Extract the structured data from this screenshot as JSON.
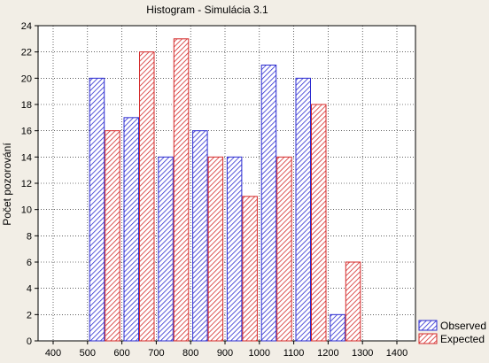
{
  "chart_data": {
    "type": "bar",
    "title": "Histogram - Simulácia 3.1",
    "xlabel": "",
    "ylabel": "Počet pozorování",
    "x_ticks": [
      "400",
      "500",
      "600",
      "700",
      "800",
      "900",
      "1000",
      "1100",
      "1200",
      "1300",
      "1400"
    ],
    "y_ticks": [
      "0",
      "2",
      "4",
      "6",
      "8",
      "10",
      "12",
      "14",
      "16",
      "18",
      "20",
      "22",
      "24"
    ],
    "xlim": [
      350,
      1450
    ],
    "ylim": [
      0,
      24
    ],
    "grid": true,
    "legend_position": "bottom-right",
    "bin_centers": [
      550,
      650,
      750,
      850,
      950,
      1050,
      1150,
      1250
    ],
    "series": [
      {
        "name": "Observed",
        "color": "#2b2bd0",
        "values": [
          20,
          17,
          14,
          16,
          14,
          21,
          20,
          2
        ]
      },
      {
        "name": "Expected",
        "color": "#d42a2a",
        "values": [
          16,
          22,
          23,
          14,
          11,
          14,
          18,
          6
        ]
      }
    ]
  }
}
